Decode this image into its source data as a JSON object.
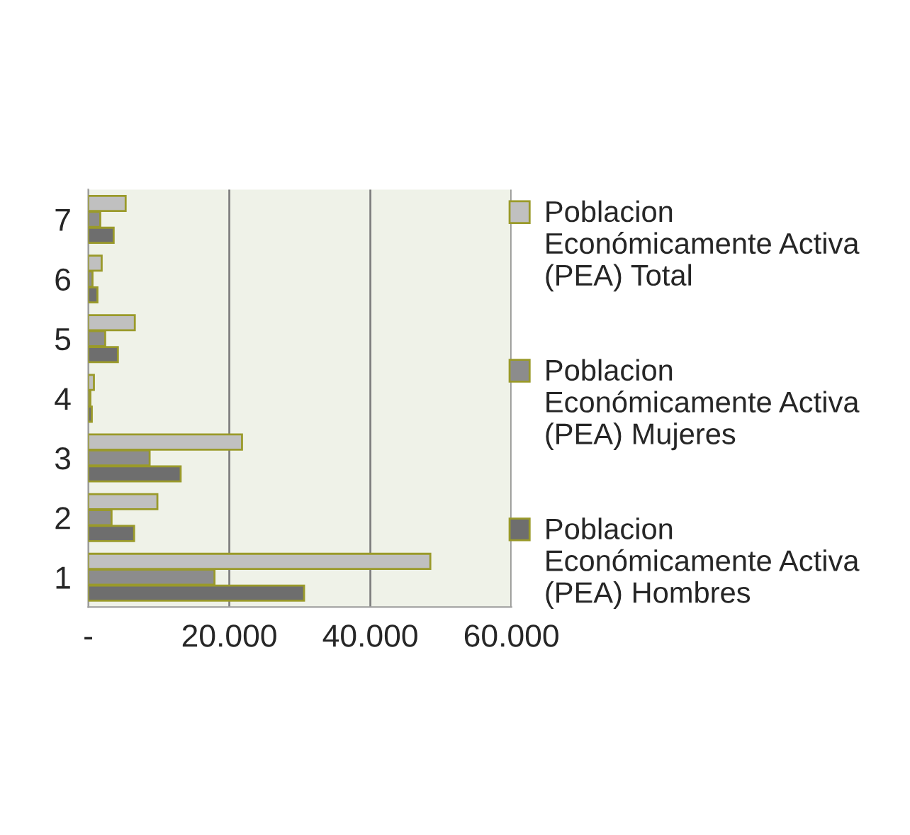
{
  "chart_data": {
    "type": "bar",
    "orientation": "horizontal",
    "categories": [
      "7",
      "6",
      "5",
      "4",
      "3",
      "2",
      "1"
    ],
    "series": [
      {
        "name": "Poblacion Económicamente Activa (PEA) Total",
        "color": "#c0c0c0",
        "values": [
          5300,
          1900,
          6600,
          800,
          21800,
          9800,
          48500
        ]
      },
      {
        "name": "Poblacion Económicamente Activa (PEA) Mujeres",
        "color": "#8c8c8c",
        "values": [
          1700,
          600,
          2400,
          300,
          8700,
          3300,
          17900
        ]
      },
      {
        "name": "Poblacion Económicamente Activa (PEA) Hombres",
        "color": "#6e6e6e",
        "values": [
          3600,
          1300,
          4200,
          500,
          13100,
          6500,
          30600
        ]
      }
    ],
    "xlim": [
      0,
      60000
    ],
    "xticks": [
      {
        "value": 0,
        "label": "-"
      },
      {
        "value": 20000,
        "label": "20.000"
      },
      {
        "value": 40000,
        "label": "40.000"
      },
      {
        "value": 60000,
        "label": "60.000"
      }
    ],
    "grid": "x",
    "legend": "right"
  }
}
